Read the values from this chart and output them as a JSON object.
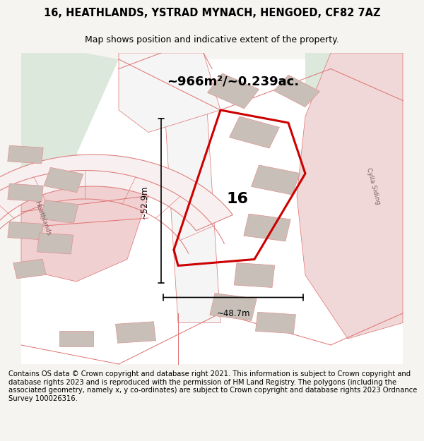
{
  "title_line1": "16, HEATHLANDS, YSTRAD MYNACH, HENGOED, CF82 7AZ",
  "title_line2": "Map shows position and indicative extent of the property.",
  "area_text": "~966m²/~0.239ac.",
  "label_16": "16",
  "dim_height": "~52.9m",
  "dim_width": "~48.7m",
  "footer_text": "Contains OS data © Crown copyright and database right 2021. This information is subject to Crown copyright and database rights 2023 and is reproduced with the permission of HM Land Registry. The polygons (including the associated geometry, namely x, y co-ordinates) are subject to Crown copyright and database rights 2023 Ordnance Survey 100026316.",
  "bg_color": "#f5f4f1",
  "map_bg": "#ffffff",
  "road_color": "#e8a0a0",
  "road_fill": "#ffffff",
  "highlight_color": "#cc0000",
  "building_color": "#d0c8c0",
  "green_area": "#d8e8d8",
  "road_stroke": "#e07070",
  "street_label_heathlands": "Heathlands",
  "street_label_cylla": "Cylla Siding"
}
